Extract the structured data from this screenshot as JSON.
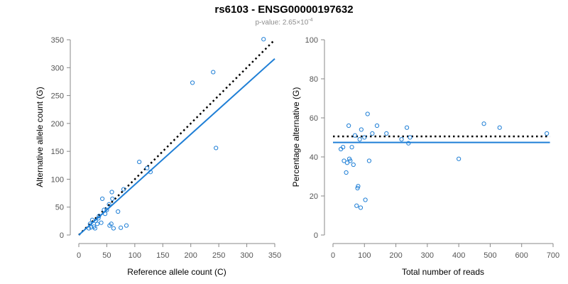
{
  "figure": {
    "title": "rs6103 - ENSG00000197632",
    "pvalue_label": "p-value: ",
    "pvalue_mantissa": "2.65",
    "pvalue_times": "×10",
    "pvalue_exponent": "-4"
  },
  "colors": {
    "point": "#1f7fd6",
    "fit_line": "#1f7fd6",
    "reference_line": "#000000",
    "axis": "#888888",
    "tick_label": "#555555"
  },
  "chart_data": [
    {
      "type": "scatter",
      "xlabel": "Reference allele count (C)",
      "ylabel": "Alternative allele count (G)",
      "xlim": [
        0,
        350
      ],
      "ylim": [
        0,
        350
      ],
      "xticks": [
        0,
        50,
        100,
        150,
        200,
        250,
        300,
        350
      ],
      "yticks": [
        0,
        50,
        100,
        150,
        200,
        250,
        300,
        350
      ],
      "grid": false,
      "points": [
        {
          "x": 18,
          "y": 12
        },
        {
          "x": 20,
          "y": 20
        },
        {
          "x": 22,
          "y": 14
        },
        {
          "x": 24,
          "y": 27
        },
        {
          "x": 27,
          "y": 15
        },
        {
          "x": 29,
          "y": 12
        },
        {
          "x": 30,
          "y": 25
        },
        {
          "x": 33,
          "y": 20
        },
        {
          "x": 35,
          "y": 30
        },
        {
          "x": 36,
          "y": 34
        },
        {
          "x": 40,
          "y": 22
        },
        {
          "x": 42,
          "y": 65
        },
        {
          "x": 45,
          "y": 45
        },
        {
          "x": 47,
          "y": 38
        },
        {
          "x": 50,
          "y": 45
        },
        {
          "x": 54,
          "y": 55
        },
        {
          "x": 55,
          "y": 17
        },
        {
          "x": 58,
          "y": 20
        },
        {
          "x": 59,
          "y": 77
        },
        {
          "x": 60,
          "y": 65
        },
        {
          "x": 62,
          "y": 12
        },
        {
          "x": 70,
          "y": 42
        },
        {
          "x": 75,
          "y": 13
        },
        {
          "x": 80,
          "y": 82
        },
        {
          "x": 85,
          "y": 17
        },
        {
          "x": 108,
          "y": 131
        },
        {
          "x": 122,
          "y": 120
        },
        {
          "x": 128,
          "y": 113
        },
        {
          "x": 203,
          "y": 273
        },
        {
          "x": 240,
          "y": 292
        },
        {
          "x": 245,
          "y": 156
        },
        {
          "x": 330,
          "y": 351
        }
      ],
      "lines": [
        {
          "role": "reference",
          "style": "dotted",
          "x": [
            0,
            350
          ],
          "y": [
            0,
            350
          ]
        },
        {
          "role": "fit",
          "style": "solid",
          "x": [
            0,
            350
          ],
          "y": [
            0,
            316
          ]
        }
      ]
    },
    {
      "type": "scatter",
      "xlabel": "Total number of reads",
      "ylabel": "Percentage alternative (G)",
      "xlim": [
        0,
        700
      ],
      "ylim": [
        0,
        100
      ],
      "xticks": [
        0,
        100,
        200,
        300,
        400,
        500,
        600,
        700
      ],
      "yticks": [
        0,
        20,
        40,
        60,
        80,
        100
      ],
      "grid": false,
      "points": [
        {
          "x": 25,
          "y": 44
        },
        {
          "x": 32,
          "y": 45
        },
        {
          "x": 35,
          "y": 38
        },
        {
          "x": 42,
          "y": 32
        },
        {
          "x": 45,
          "y": 37
        },
        {
          "x": 50,
          "y": 56
        },
        {
          "x": 52,
          "y": 39
        },
        {
          "x": 55,
          "y": 38
        },
        {
          "x": 60,
          "y": 45
        },
        {
          "x": 65,
          "y": 36
        },
        {
          "x": 70,
          "y": 51
        },
        {
          "x": 75,
          "y": 15
        },
        {
          "x": 78,
          "y": 24
        },
        {
          "x": 80,
          "y": 25
        },
        {
          "x": 85,
          "y": 49
        },
        {
          "x": 88,
          "y": 14
        },
        {
          "x": 90,
          "y": 54
        },
        {
          "x": 100,
          "y": 50
        },
        {
          "x": 103,
          "y": 18
        },
        {
          "x": 110,
          "y": 62
        },
        {
          "x": 115,
          "y": 38
        },
        {
          "x": 125,
          "y": 52
        },
        {
          "x": 140,
          "y": 56
        },
        {
          "x": 170,
          "y": 52
        },
        {
          "x": 218,
          "y": 49
        },
        {
          "x": 235,
          "y": 55
        },
        {
          "x": 240,
          "y": 47
        },
        {
          "x": 245,
          "y": 50
        },
        {
          "x": 400,
          "y": 39
        },
        {
          "x": 480,
          "y": 57
        },
        {
          "x": 530,
          "y": 55
        },
        {
          "x": 680,
          "y": 52
        }
      ],
      "lines": [
        {
          "role": "reference",
          "style": "dotted",
          "x": [
            0,
            690
          ],
          "y": [
            50.5,
            50.5
          ]
        },
        {
          "role": "fit",
          "style": "solid",
          "x": [
            0,
            690
          ],
          "y": [
            47.4,
            47.4
          ]
        }
      ]
    }
  ]
}
